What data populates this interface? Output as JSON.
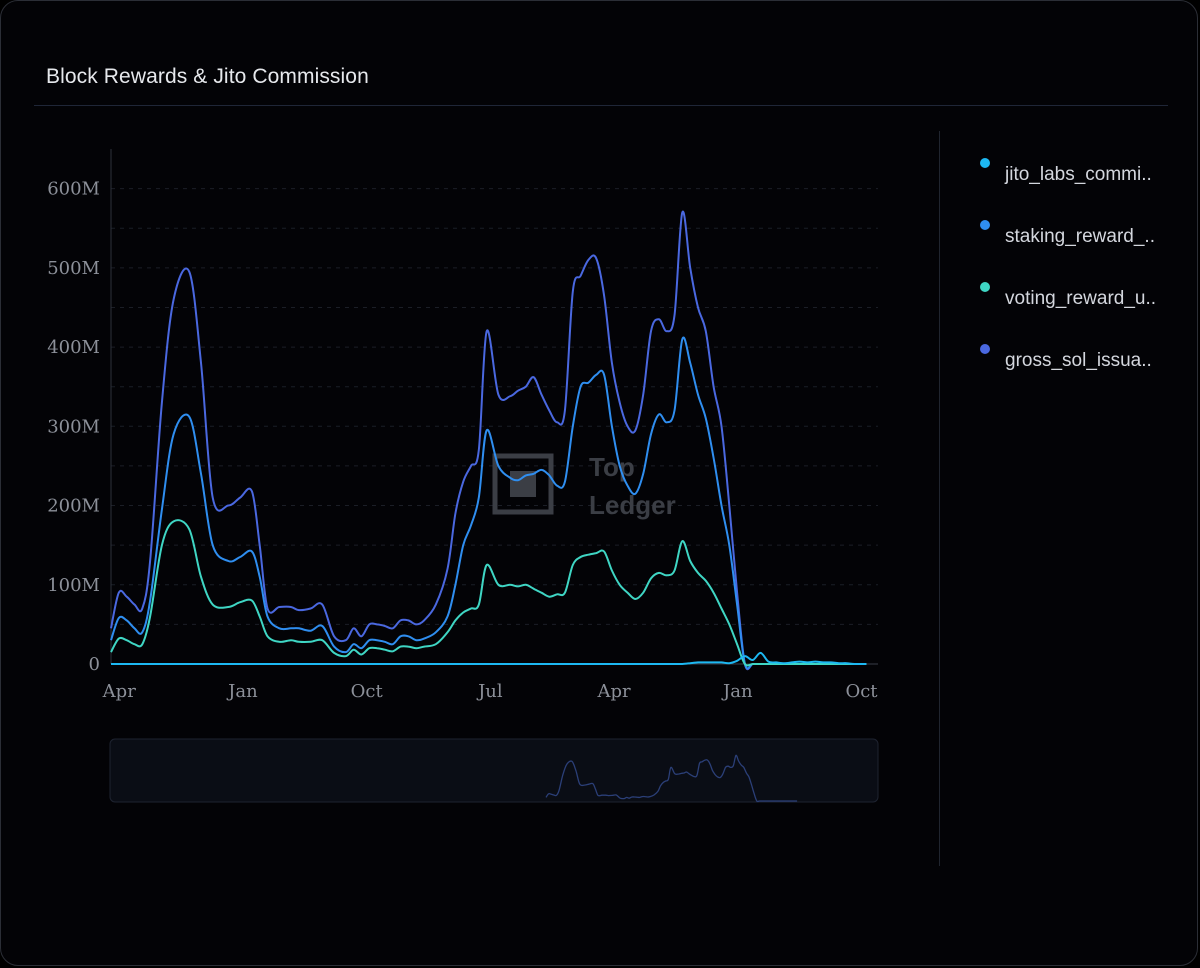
{
  "title": "Block Rewards & Jito Commission",
  "watermark": {
    "line1": "Top",
    "line2": "Ledger"
  },
  "legend": [
    {
      "label": "jito_labs_commi..",
      "color": "#1db8f2"
    },
    {
      "label": "staking_reward_..",
      "color": "#2f8ef0"
    },
    {
      "label": "voting_reward_u..",
      "color": "#3fd6c4"
    },
    {
      "label": "gross_sol_issua..",
      "color": "#4a68e0"
    }
  ],
  "chart_data": {
    "type": "line",
    "title": "Block Rewards & Jito Commission",
    "xlabel": "",
    "ylabel": "",
    "y_ticks": [
      "0",
      "100M",
      "200M",
      "300M",
      "400M",
      "500M",
      "600M"
    ],
    "x_ticks": [
      "Apr",
      "Jan",
      "Oct",
      "Jul",
      "Apr",
      "Jan",
      "Oct"
    ],
    "ylim": [
      0,
      650
    ],
    "units": "M",
    "grid": true,
    "legend_position": "right",
    "x": [
      0,
      2,
      4,
      6,
      8,
      10,
      13,
      16,
      20,
      23,
      26,
      30,
      33,
      36,
      38,
      40,
      43,
      46,
      48,
      51,
      54,
      57,
      60,
      62,
      64,
      66,
      68,
      70,
      72,
      74,
      76,
      78,
      80,
      83,
      86,
      88,
      90,
      92,
      94,
      96,
      99,
      102,
      104,
      106,
      108,
      110,
      112,
      114,
      116,
      118,
      120,
      122,
      124,
      126,
      128,
      130,
      132,
      134,
      136,
      138,
      140,
      142,
      144,
      146,
      148,
      150,
      152,
      154,
      156,
      158,
      160,
      162,
      164,
      166,
      168,
      170,
      172,
      174,
      176,
      178,
      180,
      182,
      184,
      186,
      188,
      190,
      193
    ],
    "series": [
      {
        "name": "jito_labs_commi..",
        "values": [
          0,
          0,
          0,
          0,
          0,
          0,
          0,
          0,
          0,
          0,
          0,
          0,
          0,
          0,
          0,
          0,
          0,
          0,
          0,
          0,
          0,
          0,
          0,
          0,
          0,
          0,
          0,
          0,
          0,
          0,
          0,
          0,
          0,
          0,
          0,
          0,
          0,
          0,
          0,
          0,
          0,
          0,
          0,
          0,
          0,
          0,
          0,
          0,
          0,
          0,
          0,
          0,
          0,
          0,
          0,
          0,
          0,
          0,
          0,
          0,
          0,
          0,
          0,
          0,
          1,
          2,
          2,
          2,
          2,
          1,
          4,
          10,
          5,
          14,
          3,
          2,
          1,
          2,
          3,
          2,
          3,
          2,
          2,
          1,
          1,
          0,
          0
        ]
      },
      {
        "name": "staking_reward_..",
        "values": [
          30,
          58,
          55,
          45,
          40,
          80,
          195,
          290,
          312,
          240,
          150,
          130,
          135,
          142,
          110,
          60,
          45,
          45,
          45,
          42,
          48,
          22,
          15,
          25,
          20,
          30,
          30,
          28,
          25,
          35,
          35,
          30,
          32,
          40,
          60,
          100,
          150,
          175,
          210,
          295,
          250,
          235,
          232,
          238,
          240,
          245,
          238,
          225,
          230,
          300,
          350,
          355,
          365,
          365,
          300,
          250,
          225,
          215,
          240,
          290,
          315,
          305,
          320,
          410,
          380,
          340,
          310,
          260,
          200,
          150,
          75,
          0,
          0,
          0,
          0,
          0,
          0,
          0,
          0,
          0,
          0,
          0,
          0,
          0,
          0,
          0,
          0
        ]
      },
      {
        "name": "voting_reward_u..",
        "values": [
          15,
          32,
          30,
          25,
          25,
          60,
          150,
          180,
          170,
          110,
          75,
          72,
          78,
          80,
          60,
          35,
          28,
          30,
          28,
          28,
          30,
          14,
          10,
          18,
          12,
          20,
          20,
          18,
          16,
          22,
          22,
          20,
          22,
          25,
          40,
          55,
          65,
          70,
          75,
          125,
          100,
          100,
          98,
          100,
          95,
          90,
          85,
          88,
          90,
          125,
          135,
          138,
          140,
          142,
          118,
          100,
          90,
          82,
          90,
          108,
          115,
          112,
          118,
          155,
          130,
          115,
          105,
          90,
          70,
          50,
          25,
          0,
          0,
          0,
          0,
          0,
          0,
          0,
          0,
          0,
          0,
          0,
          0,
          0,
          0,
          0,
          0
        ]
      },
      {
        "name": "gross_sol_issua..",
        "values": [
          45,
          90,
          85,
          75,
          70,
          130,
          330,
          460,
          495,
          380,
          210,
          200,
          210,
          218,
          150,
          70,
          72,
          72,
          68,
          70,
          75,
          35,
          30,
          45,
          35,
          50,
          50,
          48,
          45,
          55,
          55,
          50,
          55,
          75,
          120,
          190,
          230,
          250,
          270,
          420,
          340,
          338,
          345,
          350,
          362,
          340,
          320,
          305,
          320,
          470,
          490,
          510,
          512,
          465,
          380,
          330,
          300,
          295,
          340,
          420,
          435,
          420,
          440,
          570,
          500,
          450,
          420,
          350,
          300,
          200,
          90,
          0,
          0,
          0,
          0,
          0,
          0,
          0,
          0,
          0,
          0,
          0,
          0,
          0,
          0,
          0,
          0
        ]
      }
    ]
  }
}
